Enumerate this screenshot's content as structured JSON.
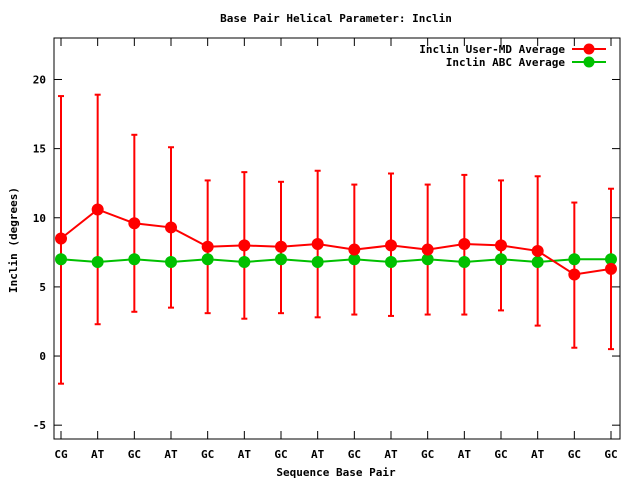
{
  "chart_data": {
    "type": "line",
    "title": "Base Pair Helical Parameter: Inclin",
    "xlabel": "Sequence Base Pair",
    "ylabel": "Inclin (degrees)",
    "categories": [
      "CG",
      "AT",
      "GC",
      "AT",
      "GC",
      "AT",
      "GC",
      "AT",
      "GC",
      "AT",
      "GC",
      "AT",
      "GC",
      "AT",
      "GC",
      "GC"
    ],
    "ylim": [
      -6,
      23
    ],
    "yticks": [
      -5,
      0,
      5,
      10,
      15,
      20
    ],
    "grid": false,
    "legend_position": "top-right",
    "series": [
      {
        "name": "Inclin User-MD Average",
        "color": "#ff0000",
        "values": [
          8.5,
          10.6,
          9.6,
          9.3,
          7.9,
          8.0,
          7.9,
          8.1,
          7.7,
          8.0,
          7.7,
          8.1,
          8.0,
          7.6,
          5.9,
          6.3
        ],
        "err_low": [
          -2.0,
          2.3,
          3.2,
          3.5,
          3.1,
          2.7,
          3.1,
          2.8,
          3.0,
          2.9,
          3.0,
          3.0,
          3.3,
          2.2,
          0.6,
          0.5
        ],
        "err_high": [
          18.8,
          18.9,
          16.0,
          15.1,
          12.7,
          13.3,
          12.6,
          13.4,
          12.4,
          13.2,
          12.4,
          13.1,
          12.7,
          13.0,
          11.1,
          12.1
        ]
      },
      {
        "name": "Inclin ABC Average",
        "color": "#00c000",
        "values": [
          7.0,
          6.8,
          7.0,
          6.8,
          7.0,
          6.8,
          7.0,
          6.8,
          7.0,
          6.8,
          7.0,
          6.8,
          7.0,
          6.8,
          7.0,
          7.0
        ]
      }
    ]
  }
}
